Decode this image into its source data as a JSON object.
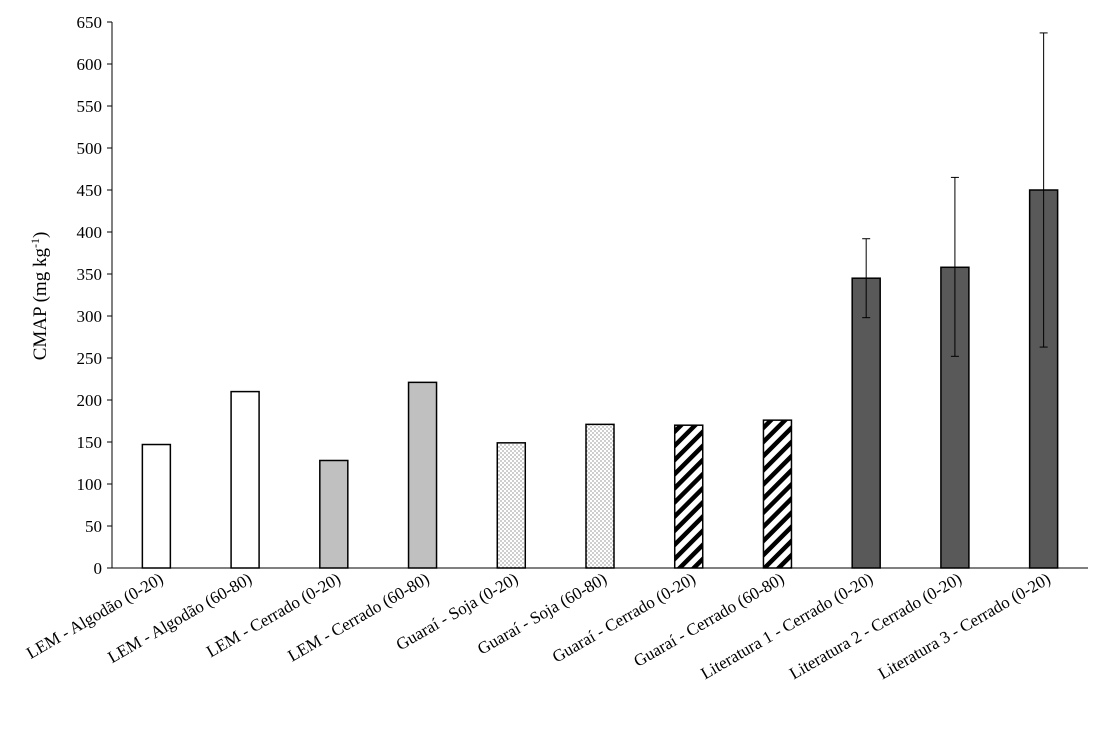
{
  "chart_data": {
    "type": "bar",
    "ylabel": "CMAP (mg kg",
    "ylabel_sup": "-1",
    "ylabel_end": ")",
    "ylim": [
      0,
      650
    ],
    "yticks": [
      0,
      50,
      100,
      150,
      200,
      250,
      300,
      350,
      400,
      450,
      500,
      550,
      600,
      650
    ],
    "grid": false,
    "categories": [
      "LEM - Algodão (0-20)",
      "LEM - Algodão (60-80)",
      "LEM - Cerrado (0-20)",
      "LEM - Cerrado (60-80)",
      "Guaraí - Soja (0-20)",
      "Guaraí - Soja (60-80)",
      "Guaraí - Cerrado (0-20)",
      "Guaraí - Cerrado (60-80)",
      "Literatura 1 - Cerrado (0-20)",
      "Literatura 2 - Cerrado (0-20)",
      "Literatura 3 - Cerrado (0-20)"
    ],
    "values": [
      147,
      210,
      128,
      221,
      149,
      171,
      170,
      176,
      345,
      358,
      450
    ],
    "error_low": [
      null,
      null,
      null,
      null,
      null,
      null,
      null,
      null,
      298,
      252,
      263
    ],
    "error_high": [
      null,
      null,
      null,
      null,
      null,
      null,
      null,
      null,
      392,
      465,
      637
    ],
    "fills": [
      "white",
      "white",
      "gray",
      "gray",
      "dotted",
      "dotted",
      "hatched",
      "hatched",
      "dark",
      "dark",
      "dark"
    ],
    "colors": {
      "gray": "#c0c0c0",
      "dark": "#595959",
      "outline": "#000000"
    }
  }
}
